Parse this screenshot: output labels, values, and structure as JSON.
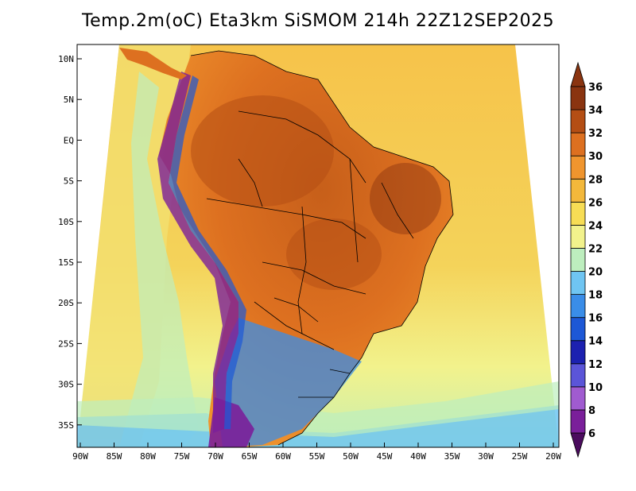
{
  "title": "Temp.2m(oC) Eta3km SiSMOM 214h 22Z12SEP2025",
  "axes": {
    "lat_labels": [
      "10N",
      "5N",
      "EQ",
      "5S",
      "10S",
      "15S",
      "20S",
      "25S",
      "30S",
      "35S"
    ],
    "lon_labels": [
      "90W",
      "85W",
      "80W",
      "75W",
      "70W",
      "65W",
      "60W",
      "55W",
      "50W",
      "45W",
      "40W",
      "35W",
      "30W",
      "25W",
      "20W"
    ]
  },
  "colorbar": {
    "labels": [
      "6",
      "8",
      "10",
      "12",
      "14",
      "16",
      "18",
      "20",
      "22",
      "24",
      "26",
      "28",
      "30",
      "32",
      "34",
      "36"
    ],
    "colors": [
      "#4b0c5e",
      "#7a1f9a",
      "#a05bd0",
      "#5b55d8",
      "#1c21b0",
      "#1d58d6",
      "#3a8de8",
      "#6fc5f2",
      "#bdeebe",
      "#f2f28c",
      "#f7dd55",
      "#f3b83b",
      "#f0952e",
      "#dd7020",
      "#b44e14",
      "#8a3410"
    ]
  },
  "map_colors": {
    "ocean_warm": "#f6c34a",
    "ocean_mid": "#f2f28c",
    "land_hot": "#dd7020",
    "land_very_hot": "#b44e14",
    "andes_cold": "#7a1f9a"
  }
}
